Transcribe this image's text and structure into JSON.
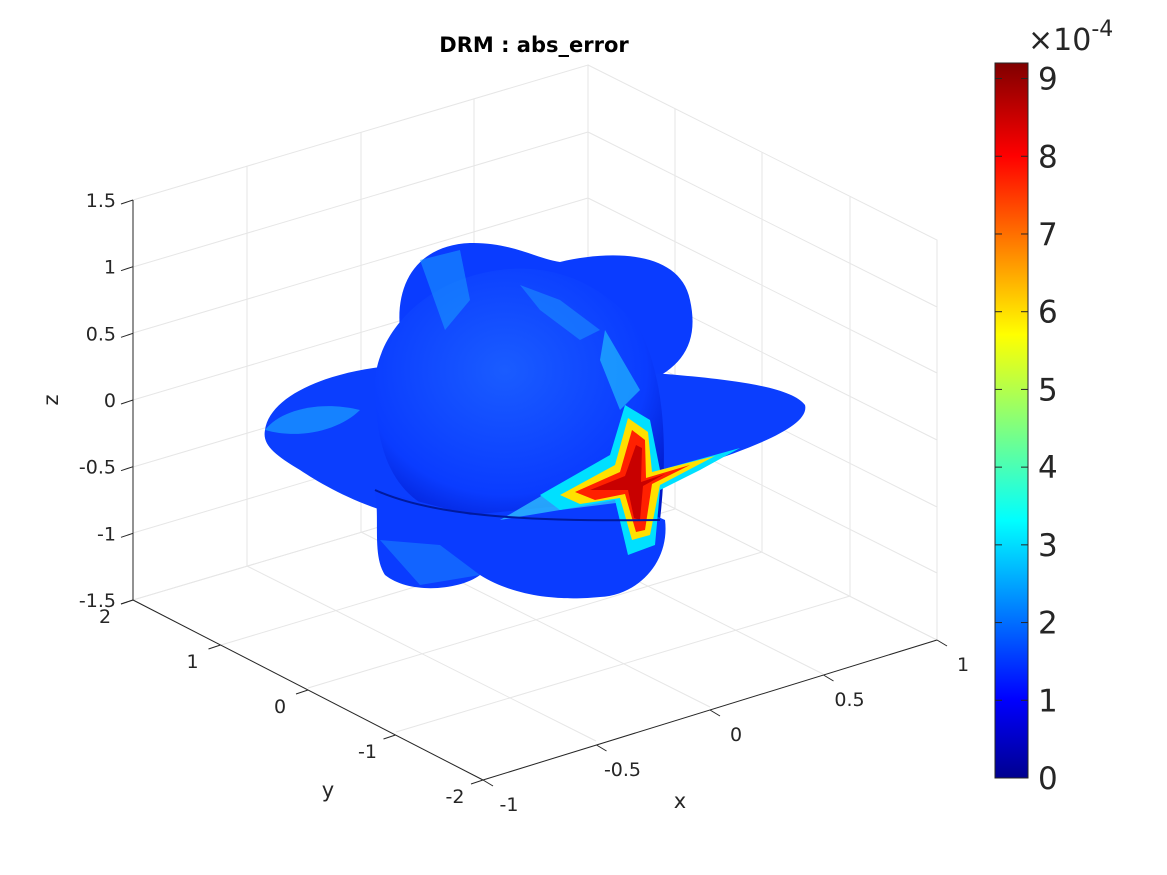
{
  "chart_data": {
    "type": "surface3d",
    "title": "DRM : abs_error",
    "xlabel": "x",
    "ylabel": "y",
    "zlabel": "z",
    "xlim": [
      -1,
      1
    ],
    "ylim": [
      -2,
      2
    ],
    "zlim": [
      -1.5,
      1.5
    ],
    "x_ticks": [
      "-1",
      "-0.5",
      "0",
      "0.5",
      "1"
    ],
    "y_ticks": [
      "-2",
      "-1",
      "0",
      "1",
      "2"
    ],
    "z_ticks": [
      "-1.5",
      "-1",
      "-0.5",
      "0",
      "0.5",
      "1",
      "1.5"
    ],
    "grid": true,
    "colormap": "jet",
    "colorbar": {
      "clim": [
        0,
        9.2
      ],
      "ticks": [
        "0",
        "1",
        "2",
        "3",
        "4",
        "5",
        "6",
        "7",
        "8",
        "9"
      ],
      "exponent_base": "×10",
      "exponent_power": "-4",
      "placement": "right"
    }
  }
}
